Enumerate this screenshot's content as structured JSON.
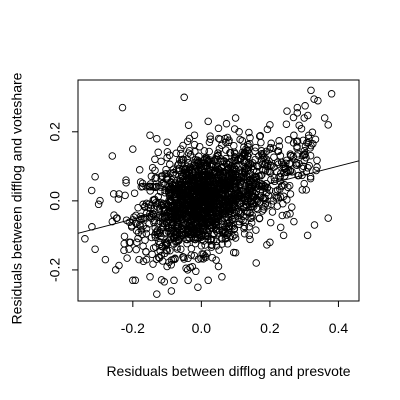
{
  "chart_data": {
    "type": "scatter",
    "title": "",
    "xlabel": "Residuals between difflog and presvote",
    "ylabel": "Residuals between difflog and voteshare",
    "xlim": [
      -0.36,
      0.46
    ],
    "ylim": [
      -0.29,
      0.35
    ],
    "x_ticks": [
      -0.2,
      0.0,
      0.2,
      0.4
    ],
    "x_tick_labels": [
      "-0.2",
      "0.0",
      "0.2",
      "0.4"
    ],
    "y_ticks": [
      -0.2,
      0.0,
      0.2
    ],
    "y_tick_labels": [
      "-0.2",
      "0.0",
      "0.2"
    ],
    "grid": false,
    "marker": "open-circle",
    "marker_color": "#000000",
    "regression_line": {
      "x": [
        -0.36,
        0.46
      ],
      "y": [
        -0.094,
        0.116
      ]
    },
    "points": [
      [
        -0.23,
        0.27
      ],
      [
        -0.05,
        0.3
      ],
      [
        0.32,
        0.32
      ],
      [
        0.38,
        0.31
      ],
      [
        0.34,
        0.29
      ],
      [
        0.28,
        0.27
      ],
      [
        0.25,
        0.26
      ],
      [
        0.3,
        0.24
      ],
      [
        0.36,
        0.24
      ],
      [
        0.37,
        0.22
      ],
      [
        0.2,
        0.22
      ],
      [
        0.1,
        0.24
      ],
      [
        -0.15,
        0.19
      ],
      [
        -0.13,
        0.18
      ],
      [
        0.02,
        0.23
      ],
      [
        0.05,
        0.21
      ],
      [
        0.11,
        0.2
      ],
      [
        -0.1,
        0.17
      ],
      [
        -0.2,
        0.15
      ],
      [
        -0.26,
        0.13
      ],
      [
        -0.31,
        0.07
      ],
      [
        -0.32,
        0.03
      ],
      [
        -0.3,
        -0.01
      ],
      [
        -0.34,
        -0.11
      ],
      [
        -0.31,
        -0.14
      ],
      [
        -0.28,
        -0.17
      ],
      [
        -0.25,
        -0.2
      ],
      [
        -0.2,
        -0.23
      ],
      [
        -0.15,
        -0.22
      ],
      [
        -0.08,
        -0.23
      ],
      [
        -0.01,
        -0.25
      ],
      [
        0.02,
        -0.23
      ],
      [
        0.06,
        -0.22
      ],
      [
        -0.13,
        -0.27
      ],
      [
        0.16,
        -0.18
      ],
      [
        0.2,
        -0.12
      ],
      [
        0.24,
        -0.1
      ],
      [
        0.27,
        -0.06
      ],
      [
        0.31,
        -0.1
      ],
      [
        0.33,
        -0.07
      ],
      [
        0.37,
        -0.05
      ],
      [
        0.3,
        0.05
      ],
      [
        0.26,
        0.02
      ],
      [
        0.23,
        0.07
      ],
      [
        0.28,
        0.13
      ],
      [
        0.32,
        0.16
      ],
      [
        0.2,
        0.15
      ],
      [
        0.15,
        0.11
      ],
      [
        0.18,
        0.09
      ],
      [
        0.12,
        0.13
      ],
      [
        0.08,
        0.17
      ],
      [
        -0.02,
        0.19
      ],
      [
        -0.06,
        0.15
      ],
      [
        -0.18,
        0.09
      ],
      [
        -0.22,
        0.06
      ],
      [
        -0.24,
        0.02
      ],
      [
        -0.26,
        -0.06
      ],
      [
        -0.21,
        -0.12
      ],
      [
        -0.16,
        -0.17
      ],
      [
        -0.1,
        -0.19
      ],
      [
        -0.04,
        -0.2
      ],
      [
        0.05,
        -0.19
      ],
      [
        0.1,
        -0.15
      ],
      [
        0.14,
        -0.1
      ],
      [
        0.17,
        -0.05
      ],
      [
        0.21,
        0.0
      ],
      [
        0.16,
        0.05
      ],
      [
        0.09,
        0.08
      ],
      [
        0.03,
        0.1
      ],
      [
        -0.03,
        0.09
      ],
      [
        -0.09,
        0.08
      ],
      [
        -0.14,
        0.04
      ],
      [
        -0.17,
        -0.01
      ],
      [
        -0.18,
        -0.07
      ],
      [
        -0.12,
        -0.12
      ],
      [
        -0.06,
        -0.14
      ],
      [
        0.0,
        -0.13
      ],
      [
        0.07,
        -0.11
      ],
      [
        0.11,
        -0.06
      ],
      [
        0.13,
        -0.01
      ],
      [
        0.1,
        0.04
      ],
      [
        0.05,
        0.05
      ],
      [
        -0.01,
        0.05
      ],
      [
        -0.07,
        0.03
      ],
      [
        -0.11,
        -0.01
      ],
      [
        -0.12,
        -0.06
      ],
      [
        -0.07,
        -0.09
      ],
      [
        -0.01,
        -0.08
      ],
      [
        0.05,
        -0.06
      ],
      [
        0.08,
        -0.02
      ],
      [
        0.04,
        0.01
      ],
      [
        -0.02,
        0.01
      ],
      [
        -0.06,
        -0.02
      ],
      [
        -0.04,
        -0.05
      ],
      [
        0.01,
        -0.04
      ],
      [
        0.03,
        -0.01
      ],
      [
        -0.09,
        -0.04
      ],
      [
        0.06,
        0.02
      ],
      [
        -0.03,
        -0.01
      ],
      [
        0.0,
        0.0
      ]
    ]
  }
}
